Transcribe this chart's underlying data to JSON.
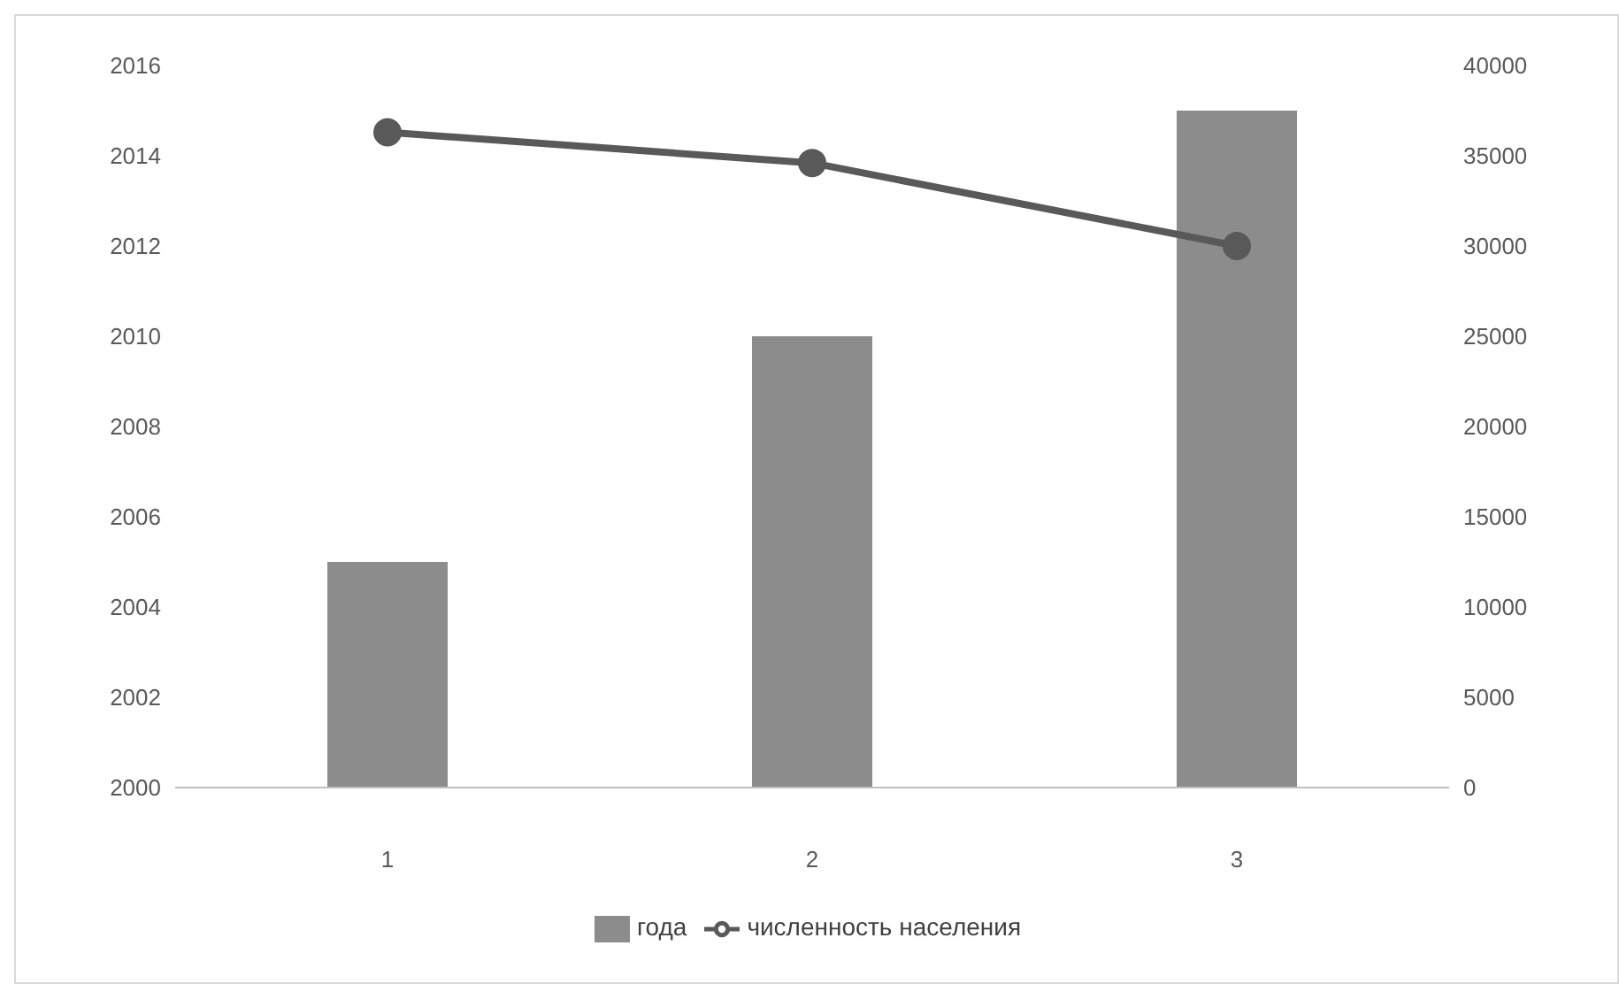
{
  "chart_data": {
    "type": "bar",
    "categories": [
      "1",
      "2",
      "3"
    ],
    "series": [
      {
        "name": "года",
        "color": "#8c8c8c",
        "values": [
          2005,
          2010,
          2015
        ]
      },
      {
        "name": "численность населения",
        "type": "line",
        "axis": "y2",
        "color": "#595959",
        "values": [
          36300,
          34600,
          30000
        ]
      }
    ],
    "ylim": [
      2000,
      2016
    ],
    "yticks": [
      2000,
      2002,
      2004,
      2006,
      2008,
      2010,
      2012,
      2014,
      2016
    ],
    "y2lim": [
      0,
      40000
    ],
    "y2ticks": [
      0,
      5000,
      10000,
      15000,
      20000,
      25000,
      30000,
      35000,
      40000
    ],
    "legend": "bottom",
    "marker": "circle",
    "grid": false
  }
}
